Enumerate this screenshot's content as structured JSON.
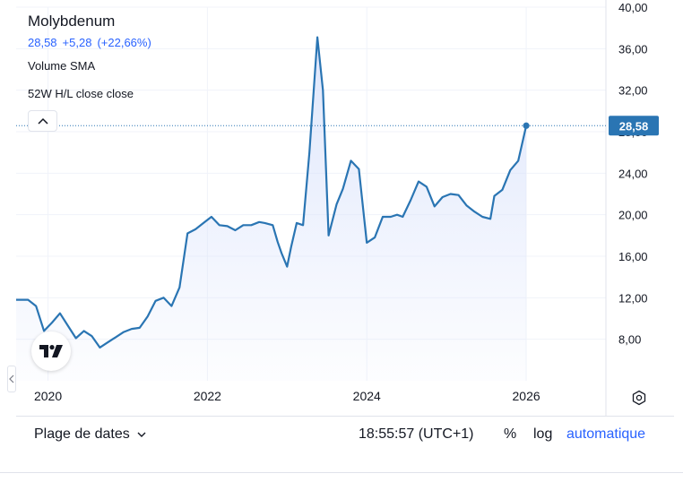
{
  "legend": {
    "symbol": "Molybdenum",
    "last": "28,58",
    "change": "+5,28",
    "change_pct": "(+22,66%)",
    "indicator1": "Volume SMA",
    "indicator2": "52W H/L close close"
  },
  "bottom_bar": {
    "date_range_label": "Plage de dates",
    "time": "18:55:57 (UTC+1)",
    "percent_label": "%",
    "log_label": "log",
    "auto_label": "automatique"
  },
  "colors": {
    "line": "#2a75b3",
    "area_top": "#d9e2fb",
    "price_label_bg": "#2a75b3"
  },
  "icons": {
    "collapse": "chevron-up-icon",
    "logo": "tradingview-logo",
    "settings": "gear-icon",
    "range_dropdown": "chevron-down-icon",
    "left_handle": "chevron-left-icon"
  },
  "chart_data": {
    "type": "area",
    "title": "Molybdenum",
    "xlabel": "",
    "ylabel": "",
    "x_ticks": [
      "2020",
      "2022",
      "2024",
      "2026"
    ],
    "y_ticks": [
      "8,00",
      "12,00",
      "16,00",
      "20,00",
      "24,00",
      "28,00",
      "32,00",
      "36,00",
      "40,00"
    ],
    "ylim": [
      4,
      40
    ],
    "xlim": [
      2019.6,
      2027.0
    ],
    "last_price_label": "28,58",
    "grid": true,
    "x": [
      2019.6,
      2019.75,
      2019.85,
      2019.95,
      2020.05,
      2020.15,
      2020.25,
      2020.35,
      2020.45,
      2020.55,
      2020.65,
      2020.75,
      2020.85,
      2020.95,
      2021.05,
      2021.15,
      2021.25,
      2021.35,
      2021.45,
      2021.55,
      2021.65,
      2021.75,
      2021.85,
      2021.95,
      2022.05,
      2022.15,
      2022.25,
      2022.35,
      2022.45,
      2022.55,
      2022.65,
      2022.72,
      2022.82,
      2022.88,
      2022.93,
      2023.0,
      2023.05,
      2023.12,
      2023.2,
      2023.28,
      2023.38,
      2023.45,
      2023.52,
      2023.62,
      2023.7,
      2023.8,
      2023.9,
      2024.0,
      2024.1,
      2024.2,
      2024.3,
      2024.38,
      2024.45,
      2024.55,
      2024.65,
      2024.75,
      2024.85,
      2024.95,
      2025.05,
      2025.15,
      2025.25,
      2025.35,
      2025.45,
      2025.55,
      2025.6,
      2025.7,
      2025.8,
      2025.9,
      2026.0
    ],
    "y": [
      11.8,
      11.8,
      11.2,
      8.8,
      9.6,
      10.5,
      9.3,
      8.1,
      8.8,
      8.3,
      7.2,
      7.7,
      8.2,
      8.7,
      9.0,
      9.1,
      10.2,
      11.7,
      12.0,
      11.2,
      13.0,
      18.2,
      18.6,
      19.2,
      19.8,
      19.0,
      18.9,
      18.5,
      19.0,
      19.0,
      19.3,
      19.2,
      19.0,
      17.4,
      16.3,
      15.0,
      16.9,
      19.2,
      19.0,
      26.0,
      37.1,
      32.0,
      18.0,
      21.0,
      22.5,
      25.2,
      24.4,
      17.3,
      17.8,
      19.8,
      19.8,
      20.0,
      19.8,
      21.4,
      23.2,
      22.7,
      20.8,
      21.7,
      22.0,
      21.9,
      20.9,
      20.3,
      19.8,
      19.6,
      21.8,
      22.4,
      24.3,
      25.2,
      28.58
    ]
  }
}
